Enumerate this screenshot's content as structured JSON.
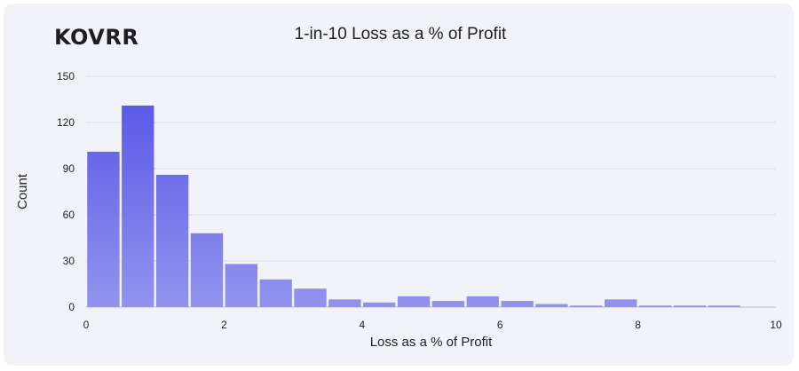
{
  "brand": {
    "logo_text": "KOVRR"
  },
  "chart_data": {
    "type": "bar",
    "title": "1-in-10 Loss as a % of Profit",
    "xlabel": "Loss as a % of Profit",
    "ylabel": "Count",
    "xlim": [
      0,
      10
    ],
    "ylim": [
      0,
      150
    ],
    "xticks": [
      0,
      2,
      4,
      6,
      8,
      10
    ],
    "yticks": [
      0,
      30,
      60,
      90,
      120,
      150
    ],
    "bin_width": 0.5,
    "bins": [
      {
        "x": 0.25,
        "count": 101
      },
      {
        "x": 0.75,
        "count": 131
      },
      {
        "x": 1.25,
        "count": 86
      },
      {
        "x": 1.75,
        "count": 48
      },
      {
        "x": 2.25,
        "count": 28
      },
      {
        "x": 2.75,
        "count": 18
      },
      {
        "x": 3.25,
        "count": 12
      },
      {
        "x": 3.75,
        "count": 5
      },
      {
        "x": 4.25,
        "count": 3
      },
      {
        "x": 4.75,
        "count": 7
      },
      {
        "x": 5.25,
        "count": 4
      },
      {
        "x": 5.75,
        "count": 7
      },
      {
        "x": 6.25,
        "count": 4
      },
      {
        "x": 6.75,
        "count": 2
      },
      {
        "x": 7.25,
        "count": 1
      },
      {
        "x": 7.75,
        "count": 5
      },
      {
        "x": 8.25,
        "count": 1
      },
      {
        "x": 8.75,
        "count": 1
      },
      {
        "x": 9.25,
        "count": 1
      }
    ],
    "grid": true,
    "colors": {
      "bar_top": "#5252e6",
      "bar_bottom": "#9393ee",
      "grid": "#d6d9e6"
    }
  }
}
